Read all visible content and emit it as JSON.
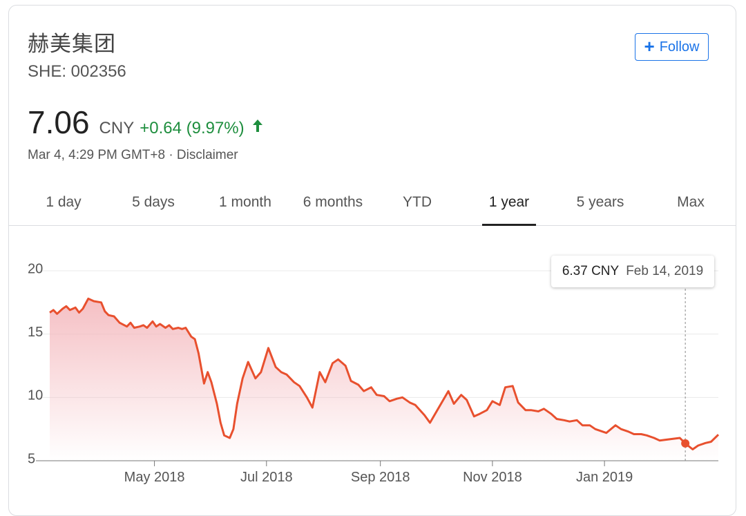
{
  "stock": {
    "name": "赫美集团",
    "ticker": "SHE: 002356",
    "price": "7.06",
    "currency": "CNY",
    "change": "+0.64 (9.97%)",
    "timestamp": "Mar 4, 4:29 PM GMT+8 · Disclaimer",
    "change_color": "#1e8e3e"
  },
  "follow": {
    "label": "Follow",
    "icon": "plus-icon",
    "color": "#1a73e8"
  },
  "tabs": [
    {
      "label": "1 day",
      "active": false
    },
    {
      "label": "5 days",
      "active": false
    },
    {
      "label": "1 month",
      "active": false
    },
    {
      "label": "6 months",
      "active": false
    },
    {
      "label": "YTD",
      "active": false
    },
    {
      "label": "1 year",
      "active": true
    },
    {
      "label": "5 years",
      "active": false
    },
    {
      "label": "Max",
      "active": false
    }
  ],
  "tooltip": {
    "value": "6.37 CNY",
    "date": "Feb 14, 2019"
  },
  "chart_data": {
    "type": "area",
    "line_color": "#e8502e",
    "fill_color": "#f4b8bd",
    "xlim": [
      "2018-03-05",
      "2019-03-04"
    ],
    "ylim": [
      5,
      20
    ],
    "y_ticks": [
      "5",
      "10",
      "15",
      "20"
    ],
    "x_ticks": [
      {
        "label": "May 2018",
        "date": "2018-05-01"
      },
      {
        "label": "Jul 2018",
        "date": "2018-07-01"
      },
      {
        "label": "Sep 2018",
        "date": "2018-09-01"
      },
      {
        "label": "Nov 2018",
        "date": "2018-11-01"
      },
      {
        "label": "Jan 2019",
        "date": "2019-01-01"
      }
    ],
    "grid": true,
    "highlight": {
      "date": "2019-02-14",
      "value": 6.37
    },
    "x": [
      "2018-03-05",
      "2018-03-07",
      "2018-03-09",
      "2018-03-12",
      "2018-03-14",
      "2018-03-16",
      "2018-03-19",
      "2018-03-21",
      "2018-03-23",
      "2018-03-26",
      "2018-03-29",
      "2018-04-02",
      "2018-04-04",
      "2018-04-06",
      "2018-04-09",
      "2018-04-12",
      "2018-04-16",
      "2018-04-18",
      "2018-04-20",
      "2018-04-23",
      "2018-04-25",
      "2018-04-27",
      "2018-04-30",
      "2018-05-02",
      "2018-05-04",
      "2018-05-07",
      "2018-05-09",
      "2018-05-11",
      "2018-05-14",
      "2018-05-16",
      "2018-05-18",
      "2018-05-21",
      "2018-05-23",
      "2018-05-25",
      "2018-05-28",
      "2018-05-30",
      "2018-06-01",
      "2018-06-04",
      "2018-06-06",
      "2018-06-08",
      "2018-06-11",
      "2018-06-13",
      "2018-06-15",
      "2018-06-18",
      "2018-06-21",
      "2018-06-25",
      "2018-06-28",
      "2018-07-02",
      "2018-07-06",
      "2018-07-09",
      "2018-07-12",
      "2018-07-16",
      "2018-07-19",
      "2018-07-23",
      "2018-07-26",
      "2018-07-30",
      "2018-08-02",
      "2018-08-06",
      "2018-08-09",
      "2018-08-13",
      "2018-08-16",
      "2018-08-20",
      "2018-08-23",
      "2018-08-27",
      "2018-08-30",
      "2018-09-03",
      "2018-09-06",
      "2018-09-10",
      "2018-09-13",
      "2018-09-17",
      "2018-09-20",
      "2018-09-25",
      "2018-09-28",
      "2018-10-08",
      "2018-10-11",
      "2018-10-15",
      "2018-10-18",
      "2018-10-22",
      "2018-10-25",
      "2018-10-29",
      "2018-11-01",
      "2018-11-05",
      "2018-11-08",
      "2018-11-12",
      "2018-11-15",
      "2018-11-19",
      "2018-11-22",
      "2018-11-26",
      "2018-11-29",
      "2018-12-03",
      "2018-12-06",
      "2018-12-10",
      "2018-12-13",
      "2018-12-17",
      "2018-12-20",
      "2018-12-24",
      "2018-12-27",
      "2019-01-02",
      "2019-01-07",
      "2019-01-10",
      "2019-01-14",
      "2019-01-17",
      "2019-01-21",
      "2019-01-24",
      "2019-01-28",
      "2019-01-31",
      "2019-02-11",
      "2019-02-14",
      "2019-02-18",
      "2019-02-21",
      "2019-02-25",
      "2019-02-28",
      "2019-03-04"
    ],
    "series": [
      {
        "values": [
          16.7,
          16.9,
          16.6,
          17.0,
          17.2,
          16.9,
          17.1,
          16.7,
          17.0,
          17.8,
          17.6,
          17.5,
          16.8,
          16.5,
          16.4,
          15.9,
          15.6,
          15.9,
          15.5,
          15.6,
          15.7,
          15.5,
          16.0,
          15.6,
          15.8,
          15.5,
          15.7,
          15.4,
          15.5,
          15.4,
          15.5,
          14.8,
          14.6,
          13.5,
          11.1,
          12.0,
          11.2,
          9.5,
          8.0,
          7.0,
          6.8,
          7.5,
          9.5,
          11.5,
          12.8,
          11.5,
          12.0,
          13.9,
          12.4,
          12.0,
          11.8,
          11.2,
          10.9,
          10.0,
          9.2,
          12.0,
          11.2,
          12.7,
          13.0,
          12.5,
          11.3,
          11.0,
          10.5,
          10.8,
          10.2,
          10.1,
          9.7,
          9.9,
          10.0,
          9.6,
          9.4,
          8.6,
          8.0,
          10.5,
          9.5,
          10.2,
          9.8,
          8.5,
          8.7,
          9.0,
          9.7,
          9.4,
          10.8,
          10.9,
          9.6,
          9.0,
          9.0,
          8.9,
          9.1,
          8.7,
          8.3,
          8.2,
          8.1,
          8.2,
          7.8,
          7.8,
          7.5,
          7.2,
          7.8,
          7.5,
          7.3,
          7.1,
          7.1,
          7.0,
          6.8,
          6.6,
          6.8,
          6.37,
          5.9,
          6.2,
          6.4,
          6.5,
          7.06
        ]
      }
    ]
  }
}
